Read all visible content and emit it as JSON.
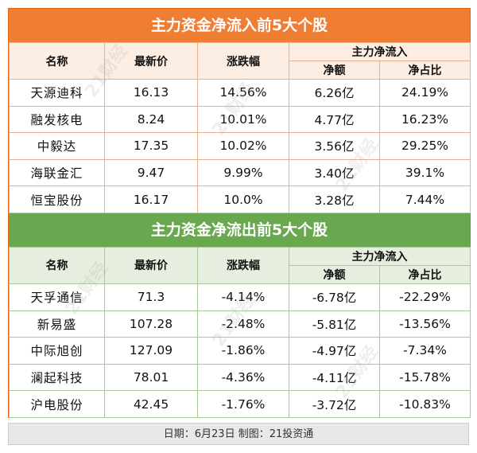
{
  "inflow": {
    "title": "主力资金净流入前5大个股",
    "headers": {
      "name": "名称",
      "price": "最新价",
      "change": "涨跌幅",
      "group": "主力净流入",
      "net": "净额",
      "ratio": "净占比"
    },
    "rows": [
      {
        "name": "天源迪科",
        "price": "16.13",
        "change": "14.56%",
        "net": "6.26亿",
        "ratio": "24.19%"
      },
      {
        "name": "融发核电",
        "price": "8.24",
        "change": "10.01%",
        "net": "4.77亿",
        "ratio": "16.23%"
      },
      {
        "name": "中毅达",
        "price": "17.35",
        "change": "10.02%",
        "net": "3.56亿",
        "ratio": "29.25%"
      },
      {
        "name": "海联金汇",
        "price": "9.47",
        "change": "9.99%",
        "net": "3.40亿",
        "ratio": "39.1%"
      },
      {
        "name": "恒宝股份",
        "price": "16.17",
        "change": "10.0%",
        "net": "3.28亿",
        "ratio": "7.44%"
      }
    ]
  },
  "outflow": {
    "title": "主力资金净流出前5大个股",
    "headers": {
      "name": "名称",
      "price": "最新价",
      "change": "涨跌幅",
      "group": "主力净流入",
      "net": "净额",
      "ratio": "净占比"
    },
    "rows": [
      {
        "name": "天孚通信",
        "price": "71.3",
        "change": "-4.14%",
        "net": "-6.78亿",
        "ratio": "-22.29%"
      },
      {
        "name": "新易盛",
        "price": "107.28",
        "change": "-2.48%",
        "net": "-5.81亿",
        "ratio": "-13.56%"
      },
      {
        "name": "中际旭创",
        "price": "127.09",
        "change": "-1.86%",
        "net": "-4.97亿",
        "ratio": "-7.34%"
      },
      {
        "name": "澜起科技",
        "price": "78.01",
        "change": "-4.36%",
        "net": "-4.11亿",
        "ratio": "-15.78%"
      },
      {
        "name": "沪电股份",
        "price": "42.45",
        "change": "-1.76%",
        "net": "-3.72亿",
        "ratio": "-10.83%"
      }
    ]
  },
  "footer": "日期：6月23日 制图：21投资通",
  "watermark": "21财经",
  "colors": {
    "inflow_banner": "#ef7d32",
    "outflow_banner": "#6aa84f",
    "inflow_header_bg": "#fdeee3",
    "outflow_header_bg": "#e6efdf"
  }
}
